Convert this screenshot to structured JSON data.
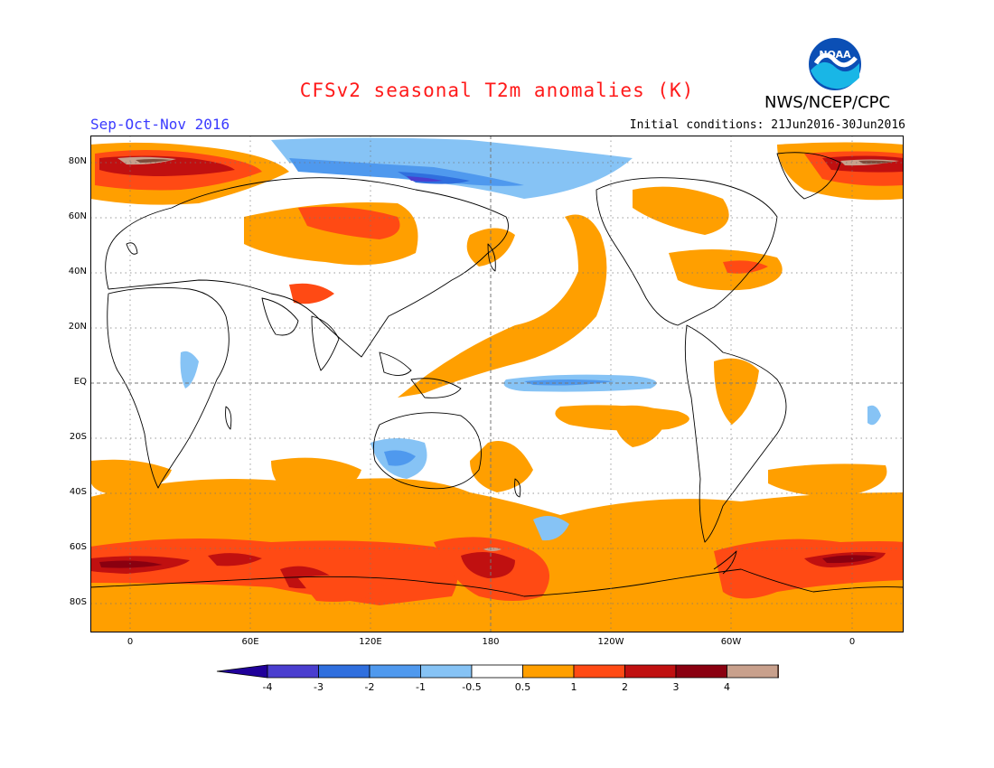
{
  "header": {
    "title": "CFSv2 seasonal T2m anomalies (K)",
    "season": "Sep-Oct-Nov 2016",
    "initial_conditions": "Initial conditions: 21Jun2016-30Jun2016",
    "agency": "NWS/NCEP/CPC",
    "logo_text": "NOAA"
  },
  "map": {
    "lat_labels": [
      "80N",
      "60N",
      "40N",
      "20N",
      "EQ",
      "20S",
      "40S",
      "60S",
      "80S"
    ],
    "lon_labels": [
      "0",
      "60E",
      "120E",
      "180",
      "120W",
      "60W",
      "0"
    ],
    "colors": {
      "neg4": "#20009a",
      "neg3": "#4a3ecf",
      "neg2": "#2f6fde",
      "neg1": "#4f99ee",
      "neg05": "#86c3f5",
      "zero": "#ffffff",
      "pos05": "#ff9f00",
      "pos1": "#ff4a14",
      "pos2": "#c01010",
      "pos3": "#8a0010",
      "pos4": "#c8a08c",
      "pos4b": "#7d4a3a"
    }
  },
  "colorbar": {
    "labels": [
      "-4",
      "-3",
      "-2",
      "-1",
      "-0.5",
      "0.5",
      "1",
      "2",
      "3",
      "4"
    ]
  }
}
